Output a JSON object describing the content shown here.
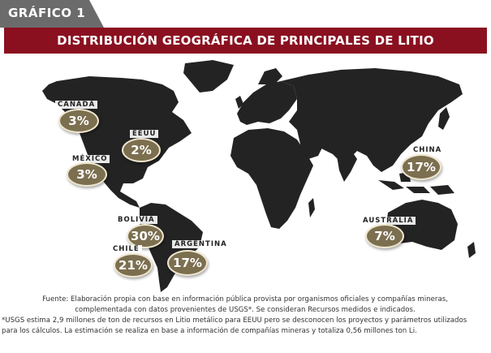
{
  "tab_label": "GRÁFICO 1",
  "title": "DISTRIBUCIÓN GEOGRÁFICA DE PRINCIPALES DE LITIO",
  "countries": [
    {
      "name": "CANADÁ",
      "value": "3%"
    },
    {
      "name": "EEUU",
      "value": "2%"
    },
    {
      "name": "MÉXICO",
      "value": "3%"
    },
    {
      "name": "BOLIVIA",
      "value": "30%"
    },
    {
      "name": "CHILE",
      "value": "21%"
    },
    {
      "name": "ARGENTINA",
      "value": "17%"
    },
    {
      "name": "CHINA",
      "value": "17%"
    },
    {
      "name": "AUSTRALIA",
      "value": "7%"
    }
  ],
  "notes": {
    "line1": "Fuente: Elaboración propia con base en información pública provista por organismos oficiales y compañías mineras,",
    "line2": "complementada con datos provenientes de USGS*. Se consideran Recursos medidos e indicados.",
    "line3": "*USGS estima 2,9 millones de ton de recursos en Litio metálico para EEUU pero se desconocen los proyectos y parámetros utilizados",
    "line4": "para los cálculos. La estimación se realiza en base a información de compañías mineras y totaliza 0,56 millones ton Li."
  },
  "colors": {
    "header": "#8a1020",
    "tab": "#6b6b6b",
    "land": "#232323",
    "badge": "#7c6f50"
  }
}
